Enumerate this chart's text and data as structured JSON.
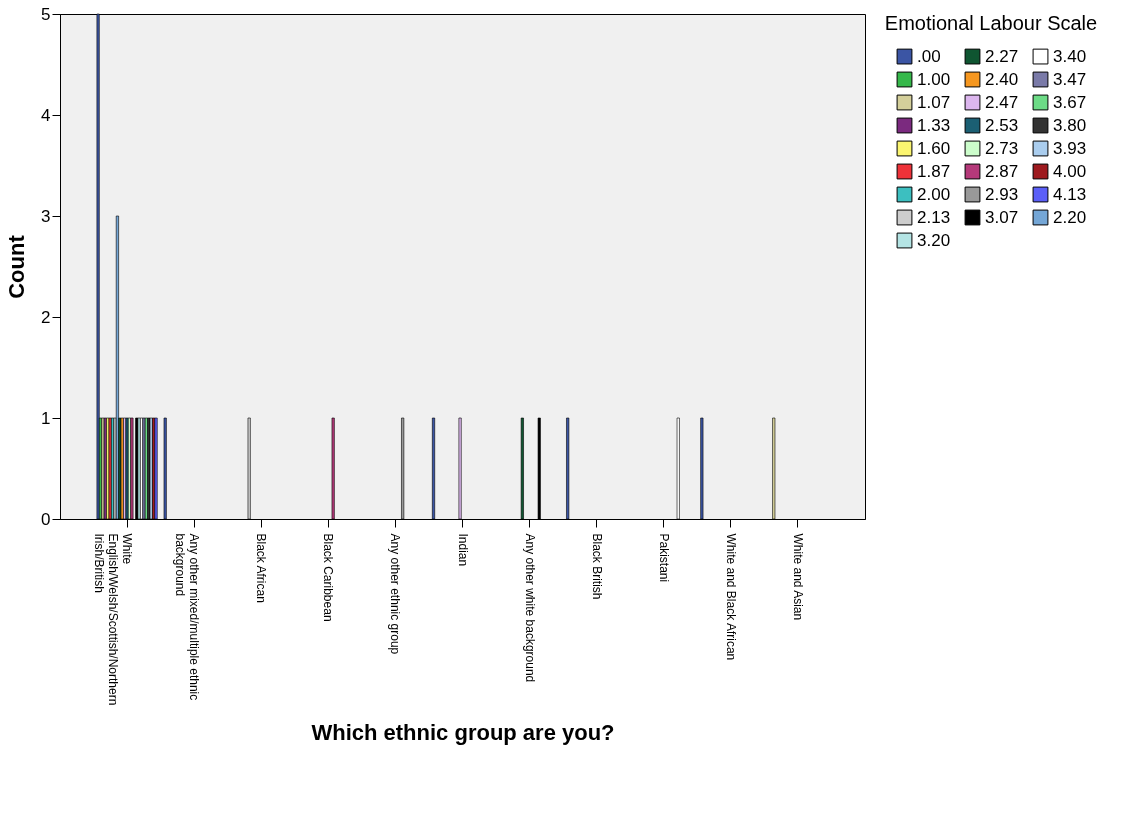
{
  "chart_data": {
    "type": "bar",
    "xlabel": "Which ethnic group are you?",
    "ylabel": "Count",
    "legend_title": "Emotional Labour Scale",
    "legend": "right",
    "grid": false,
    "categories": [
      "White English/Welsh/Scottish/Northern Irish/British",
      "Any other mixed/multiple ethnic background",
      "Black African",
      "Black Caribbean",
      "Any other ethnic group",
      "Indian",
      "Any other white background",
      "Black British",
      "Pakistani",
      "White and Black African",
      "White and Asian"
    ],
    "ylim": [
      0,
      5
    ],
    "yticks": [
      0,
      1,
      2,
      3,
      4,
      5
    ],
    "series": [
      {
        "name": ".00",
        "color": "#3b55a4",
        "values": [
          5,
          1,
          null,
          null,
          null,
          1,
          null,
          1,
          null,
          1,
          null
        ]
      },
      {
        "name": "1.00",
        "color": "#35b84a",
        "values": [
          1,
          null,
          null,
          null,
          null,
          null,
          null,
          null,
          null,
          null,
          null
        ]
      },
      {
        "name": "1.07",
        "color": "#d4cf9a",
        "values": [
          1,
          null,
          null,
          null,
          null,
          null,
          null,
          null,
          null,
          null,
          1
        ]
      },
      {
        "name": "1.33",
        "color": "#7b2a7f",
        "values": [
          1,
          null,
          null,
          null,
          null,
          null,
          null,
          null,
          null,
          null,
          null
        ]
      },
      {
        "name": "1.60",
        "color": "#fbf570",
        "values": [
          1,
          null,
          null,
          null,
          null,
          null,
          null,
          null,
          null,
          null,
          null
        ]
      },
      {
        "name": "1.87",
        "color": "#ee3239",
        "values": [
          1,
          null,
          null,
          null,
          null,
          null,
          null,
          null,
          null,
          null,
          null
        ]
      },
      {
        "name": "2.00",
        "color": "#3cbfc0",
        "values": [
          1,
          null,
          null,
          null,
          null,
          null,
          null,
          null,
          null,
          null,
          null
        ]
      },
      {
        "name": "2.13",
        "color": "#cdcdcd",
        "values": [
          1,
          null,
          1,
          null,
          null,
          null,
          null,
          null,
          null,
          null,
          null
        ]
      },
      {
        "name": "2.20",
        "color": "#74a6d6",
        "values": [
          3,
          null,
          null,
          null,
          null,
          null,
          null,
          null,
          null,
          null,
          null
        ]
      },
      {
        "name": "2.27",
        "color": "#0f5531",
        "values": [
          1,
          null,
          null,
          null,
          null,
          null,
          1,
          null,
          null,
          null,
          null
        ]
      },
      {
        "name": "2.40",
        "color": "#f6971f",
        "values": [
          1,
          null,
          null,
          null,
          null,
          null,
          null,
          null,
          null,
          null,
          null
        ]
      },
      {
        "name": "2.47",
        "color": "#dcb6ee",
        "values": [
          1,
          null,
          null,
          null,
          null,
          1,
          null,
          null,
          null,
          null,
          null
        ]
      },
      {
        "name": "2.53",
        "color": "#1b5f73",
        "values": [
          1,
          null,
          null,
          null,
          null,
          null,
          null,
          null,
          null,
          null,
          null
        ]
      },
      {
        "name": "2.73",
        "color": "#ccfdcb",
        "values": [
          1,
          null,
          null,
          null,
          null,
          null,
          null,
          null,
          null,
          null,
          null
        ]
      },
      {
        "name": "2.87",
        "color": "#b5397a",
        "values": [
          1,
          null,
          null,
          1,
          null,
          null,
          null,
          null,
          null,
          null,
          null
        ]
      },
      {
        "name": "2.93",
        "color": "#999999",
        "values": [
          null,
          null,
          null,
          null,
          1,
          null,
          null,
          null,
          null,
          null,
          null
        ]
      },
      {
        "name": "3.07",
        "color": "#000000",
        "values": [
          1,
          null,
          null,
          null,
          null,
          null,
          1,
          null,
          null,
          null,
          null
        ]
      },
      {
        "name": "3.20",
        "color": "#b4e4e4",
        "values": [
          1,
          null,
          null,
          null,
          null,
          null,
          null,
          null,
          null,
          null,
          null
        ]
      },
      {
        "name": "3.40",
        "color": "#ffffff",
        "values": [
          1,
          null,
          null,
          null,
          null,
          null,
          null,
          null,
          1,
          null,
          null
        ]
      },
      {
        "name": "3.47",
        "color": "#7a7aa8",
        "values": [
          1,
          null,
          null,
          null,
          null,
          null,
          null,
          null,
          null,
          null,
          null
        ]
      },
      {
        "name": "3.67",
        "color": "#6cdb86",
        "values": [
          1,
          null,
          null,
          null,
          null,
          null,
          null,
          null,
          null,
          null,
          null
        ]
      },
      {
        "name": "3.80",
        "color": "#333333",
        "values": [
          1,
          null,
          null,
          null,
          null,
          null,
          null,
          null,
          null,
          null,
          null
        ]
      },
      {
        "name": "3.93",
        "color": "#aacdee",
        "values": [
          1,
          null,
          null,
          null,
          null,
          null,
          null,
          null,
          null,
          null,
          null
        ]
      },
      {
        "name": "4.00",
        "color": "#9e1a1f",
        "values": [
          1,
          null,
          null,
          null,
          null,
          null,
          null,
          null,
          null,
          null,
          null
        ]
      },
      {
        "name": "4.13",
        "color": "#5b5ff8",
        "values": [
          1,
          null,
          null,
          null,
          null,
          null,
          null,
          null,
          null,
          null,
          null
        ]
      }
    ]
  }
}
